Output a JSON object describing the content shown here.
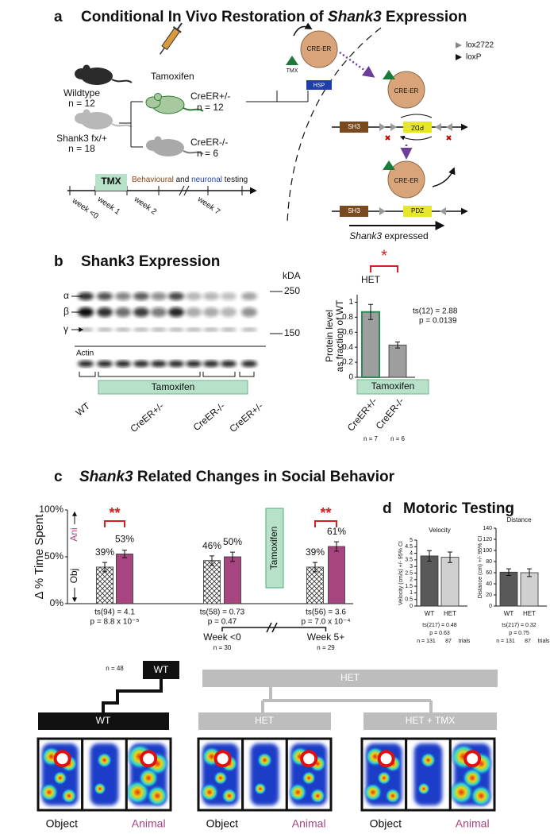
{
  "panel_a": {
    "letter": "a",
    "title_start": "Conditional In Vivo Restoration of ",
    "title_italic": "Shank3",
    "title_end": " Expression",
    "groups": [
      {
        "label": "Wildtype",
        "n": "n = 12"
      },
      {
        "label": "Shank3 fx/+",
        "n": "n = 18"
      },
      {
        "label": "CreER+/-",
        "n": "n = 12"
      },
      {
        "label": "CreER-/-",
        "n": "n = 6"
      }
    ],
    "drug": "Tamoxifen",
    "timeline": {
      "box": "TMX",
      "testing": [
        "Behavioural",
        " and ",
        "neuronal",
        " testing"
      ],
      "weeks": [
        "week <0",
        "week 1",
        "week 2",
        "week 7"
      ]
    },
    "construct": {
      "ligand": "TMX",
      "enzyme": "CRE-ER",
      "chaperone": "HSP",
      "legend": [
        "lox2722",
        "loxP"
      ],
      "domains": [
        "SH3",
        "PDZ"
      ],
      "result_italic": "Shank3",
      "result": " expressed"
    }
  },
  "panel_b": {
    "letter": "b",
    "title": "Shank3 Expression",
    "kda": "kDA",
    "mw_markers": [
      "250",
      "150"
    ],
    "bands": [
      "α",
      "β",
      "γ"
    ],
    "loading": "Actin",
    "treatment": "Tamoxifen",
    "lanes": [
      "WT",
      "CreER+/-",
      "CreER-/-",
      "CreER+/-"
    ]
  },
  "panel_c": {
    "letter": "c",
    "title_italic": "Shank3",
    "title_rest": " Related Changes in Social Behavior"
  },
  "panel_d": {
    "letter": "d",
    "title": "Motoric Testing"
  },
  "panel_bottom": {
    "wt_root": "WT",
    "wt_leaf": "WT",
    "het_root": "HET",
    "het_leaf": "HET",
    "het_tmx_leaf": "HET + TMX",
    "maps": [
      {
        "left": "Object",
        "right": "Animal"
      },
      {
        "left": "Object",
        "right": "Animal"
      },
      {
        "left": "Object",
        "right": "Animal"
      }
    ]
  },
  "chart_data": [
    {
      "type": "bar",
      "y_label_lines": [
        "Protein level",
        "as fraction of WT"
      ],
      "categories": [
        "CreER+/-",
        "CreER-/-"
      ],
      "values": [
        0.87,
        0.43
      ],
      "errors": [
        0.1,
        0.04
      ],
      "color": "#9e9e9e",
      "ylim": [
        0,
        1.1
      ],
      "yticks": [
        0,
        0.2,
        0.4,
        0.6,
        0.8,
        1
      ],
      "group_label": "HET",
      "significance": "*",
      "stat": "ts(12) = 2.88",
      "p": "p = 0.0139",
      "treatment": "Tamoxifen",
      "n_labels": [
        "n = 7",
        "n = 6"
      ]
    },
    {
      "type": "bar",
      "y_label": "Δ % Time Spent",
      "categories": [
        null,
        "Week <0",
        "Week 5+"
      ],
      "ylim": [
        0,
        100
      ],
      "yticks": [
        {
          "value": 0,
          "label": "0%"
        },
        {
          "value": 50,
          "label": "50%"
        },
        {
          "value": 100,
          "label": "100%"
        }
      ],
      "series": [
        {
          "name": "Obj",
          "color": "#ffffff",
          "hatch": true,
          "values": [
            39,
            46,
            39
          ],
          "errors": [
            5,
            5,
            5
          ],
          "value_labels": [
            "39%",
            "46%",
            "39%"
          ]
        },
        {
          "name": "Ani",
          "color": "#a6457f",
          "values": [
            53,
            50,
            61
          ],
          "errors": [
            4,
            5,
            5
          ],
          "value_labels": [
            "53%",
            "50%",
            "61%"
          ]
        }
      ],
      "stats": [
        {
          "t": "ts(94) = 4.1",
          "p": "p = 8.8 x 10⁻⁵",
          "sig": "**"
        },
        {
          "t": "ts(58) = 0.73",
          "p": "p = 0.47"
        },
        {
          "t": "ts(56) = 3.6",
          "p": "p = 7.0 x 10⁻⁴",
          "sig": "**"
        }
      ],
      "treatment": "Tamoxifen",
      "n_labels": [
        "n = 48",
        "n = 30",
        "n = 29"
      ]
    },
    {
      "type": "bar",
      "title": "Velocity",
      "y_label": "Velocity (cm/s) +/- 95% CI",
      "categories": [
        "WT",
        "HET"
      ],
      "values": [
        3.8,
        3.7
      ],
      "errors": [
        0.4,
        0.4
      ],
      "colors": [
        "#595959",
        "#d0d0d0"
      ],
      "ylim": [
        0,
        5
      ],
      "yticks": [
        0,
        0.5,
        1,
        1.5,
        2,
        2.5,
        3,
        3.5,
        4,
        4.5,
        5
      ],
      "stat": "ts(217) = 0.48",
      "p": "p = 0.63",
      "n_labels": [
        "n = 131",
        "87"
      ],
      "n_unit": "trials"
    },
    {
      "type": "bar",
      "title": "Distance",
      "y_label": "Distance (cm) +/- 95% CI",
      "categories": [
        "WT",
        "HET"
      ],
      "values": [
        61,
        60
      ],
      "errors": [
        6,
        7
      ],
      "colors": [
        "#595959",
        "#d0d0d0"
      ],
      "ylim": [
        0,
        140
      ],
      "yticks": [
        0,
        20,
        40,
        60,
        80,
        100,
        120,
        140
      ],
      "stat": "ts(217) = 0.32",
      "p": "p = 0.75",
      "n_labels": [
        "n = 131",
        "87"
      ],
      "n_unit": "trials"
    }
  ]
}
